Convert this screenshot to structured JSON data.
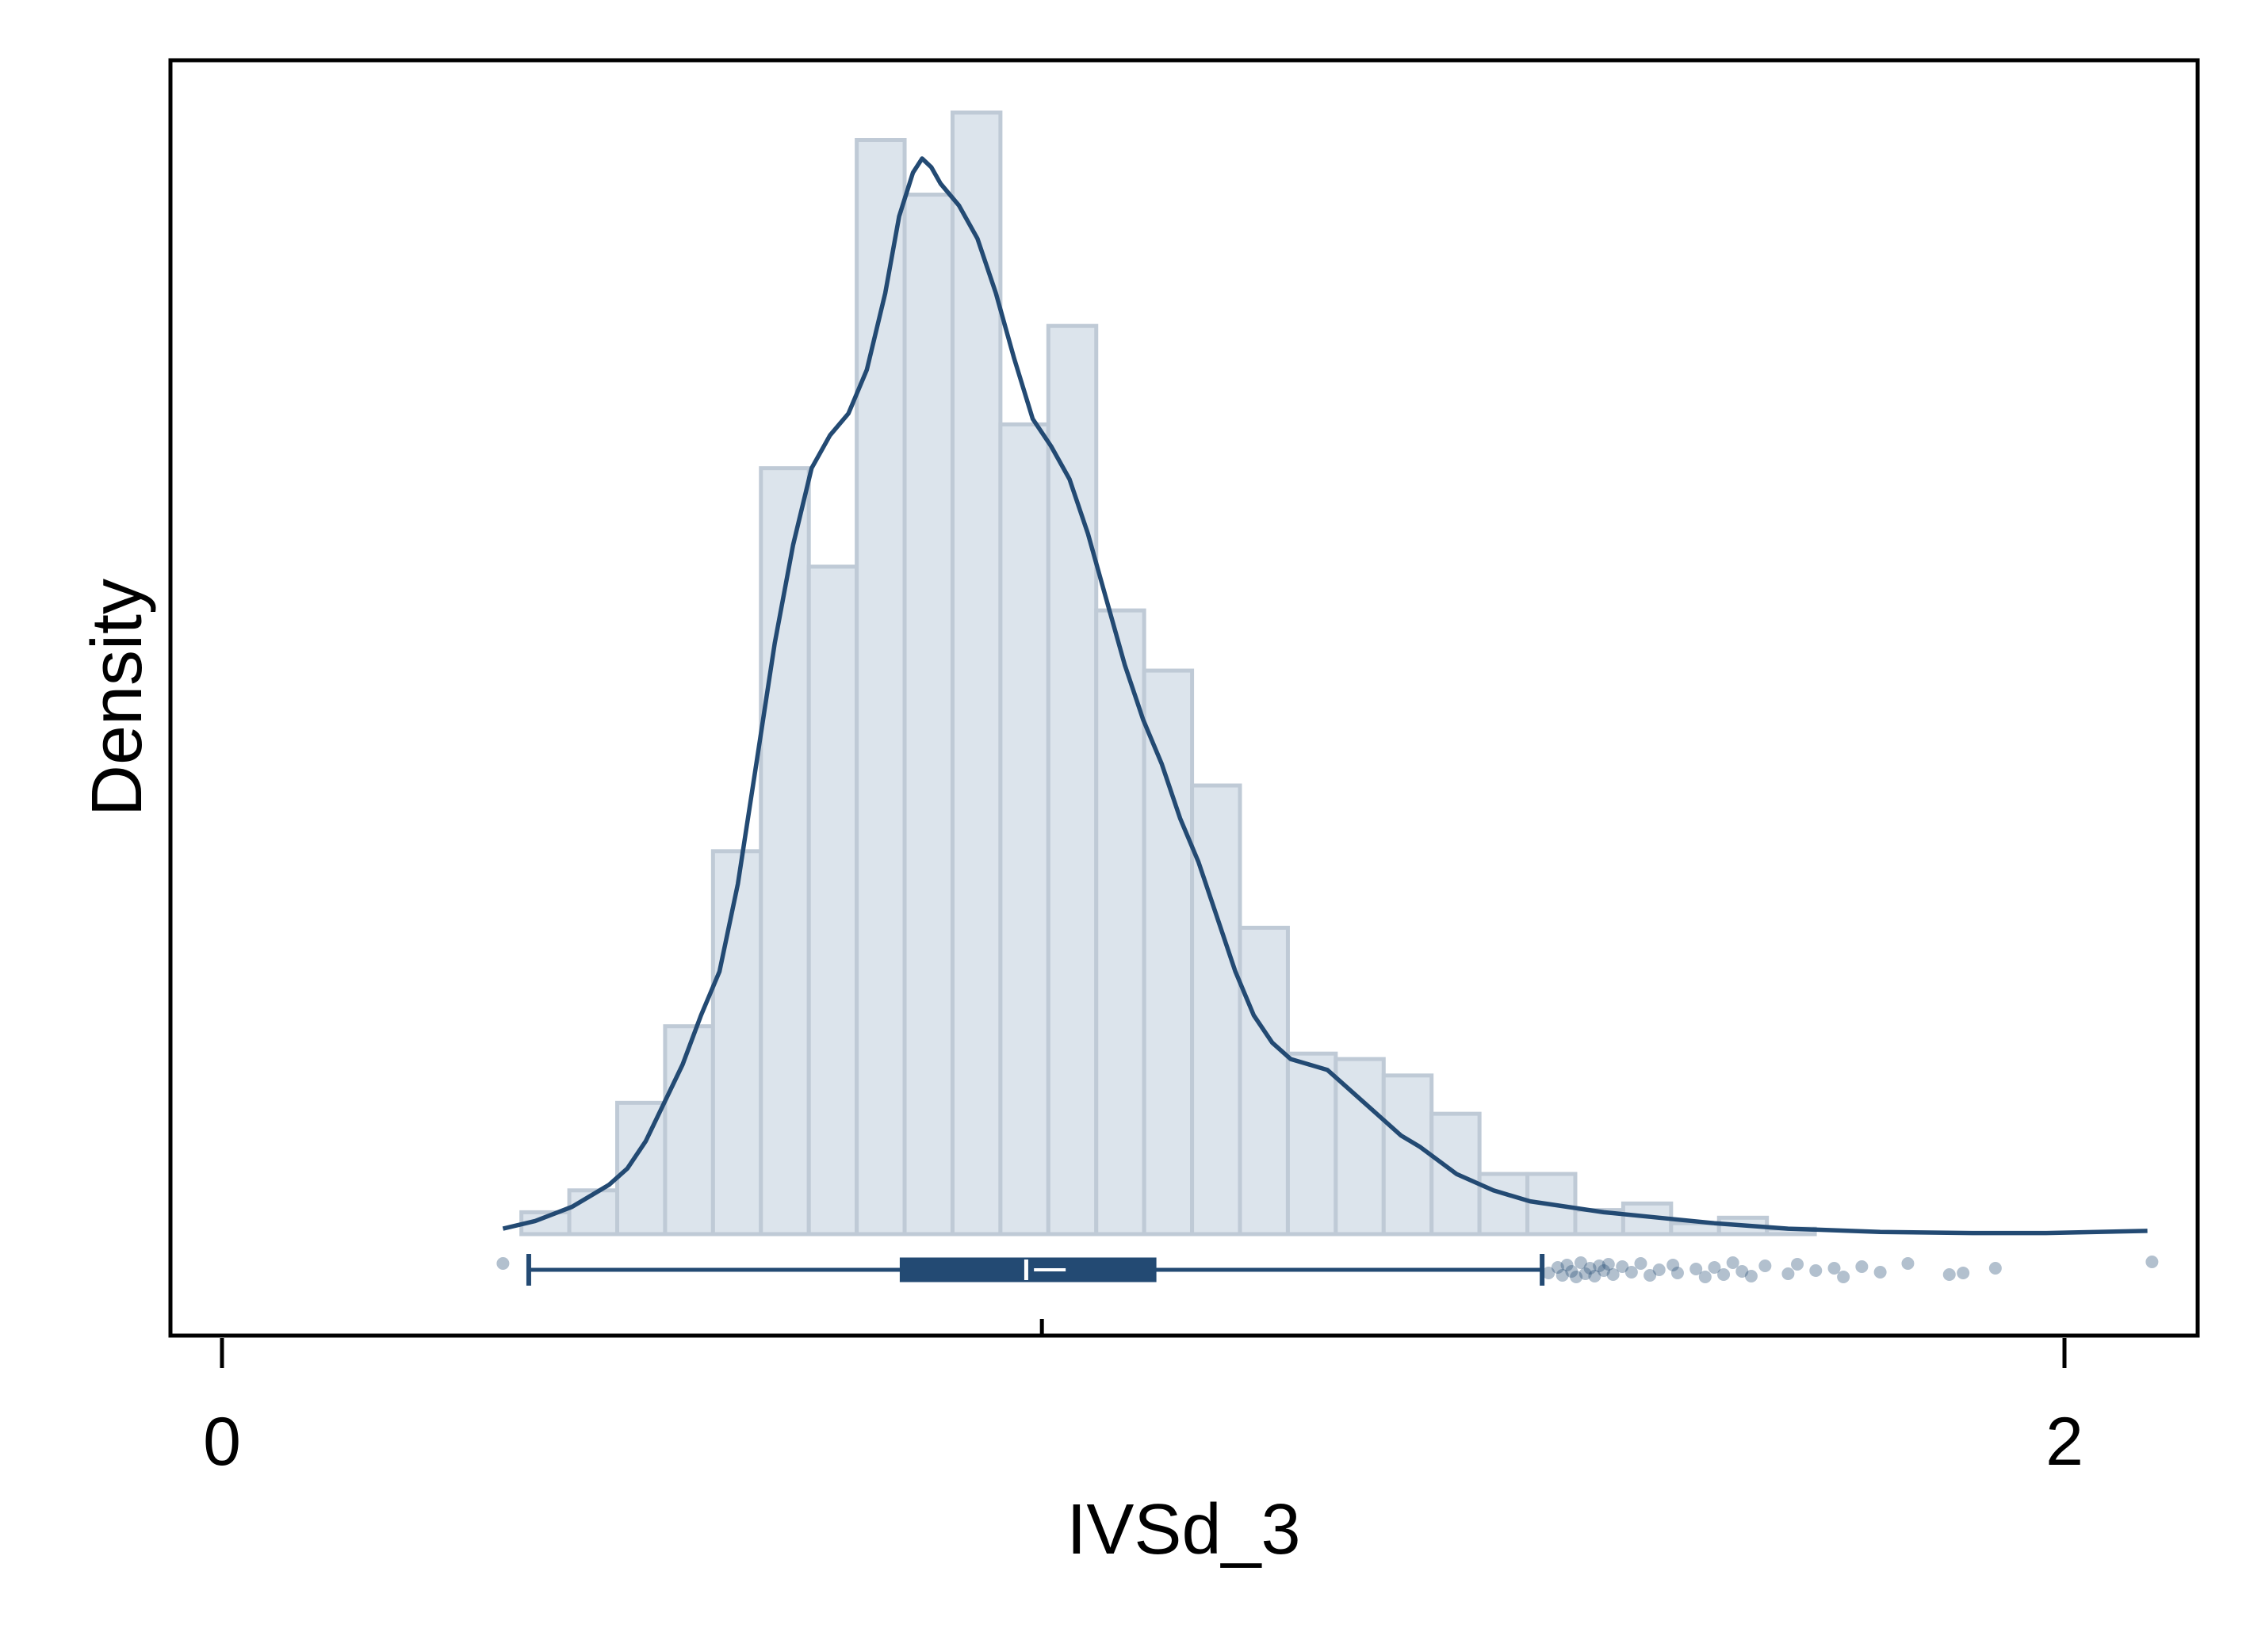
{
  "chart_data": {
    "type": "histogram",
    "xlabel": "IVSd_3",
    "ylabel": "Density",
    "x_ticks": [
      0,
      2
    ],
    "xlim": [
      -0.06,
      2.15
    ],
    "y_tick_labels_shown": false,
    "grid": false,
    "legend": "none",
    "histogram": {
      "bin_width": 0.052,
      "bins": [
        {
          "x0": 0.325,
          "x1": 0.377,
          "height": 0.02
        },
        {
          "x0": 0.377,
          "x1": 0.429,
          "height": 0.04
        },
        {
          "x0": 0.429,
          "x1": 0.481,
          "height": 0.12
        },
        {
          "x0": 0.481,
          "x1": 0.533,
          "height": 0.19
        },
        {
          "x0": 0.533,
          "x1": 0.585,
          "height": 0.35
        },
        {
          "x0": 0.585,
          "x1": 0.637,
          "height": 0.7
        },
        {
          "x0": 0.637,
          "x1": 0.689,
          "height": 0.61
        },
        {
          "x0": 0.689,
          "x1": 0.741,
          "height": 1.0
        },
        {
          "x0": 0.741,
          "x1": 0.793,
          "height": 0.95
        },
        {
          "x0": 0.793,
          "x1": 0.845,
          "height": 1.025
        },
        {
          "x0": 0.845,
          "x1": 0.897,
          "height": 0.74
        },
        {
          "x0": 0.897,
          "x1": 0.949,
          "height": 0.83
        },
        {
          "x0": 0.949,
          "x1": 1.001,
          "height": 0.57
        },
        {
          "x0": 1.001,
          "x1": 1.053,
          "height": 0.515
        },
        {
          "x0": 1.053,
          "x1": 1.105,
          "height": 0.41
        },
        {
          "x0": 1.105,
          "x1": 1.157,
          "height": 0.28
        },
        {
          "x0": 1.157,
          "x1": 1.209,
          "height": 0.165
        },
        {
          "x0": 1.209,
          "x1": 1.261,
          "height": 0.16
        },
        {
          "x0": 1.261,
          "x1": 1.313,
          "height": 0.145
        },
        {
          "x0": 1.313,
          "x1": 1.365,
          "height": 0.11
        },
        {
          "x0": 1.365,
          "x1": 1.417,
          "height": 0.055
        },
        {
          "x0": 1.417,
          "x1": 1.469,
          "height": 0.055
        },
        {
          "x0": 1.469,
          "x1": 1.521,
          "height": 0.022
        },
        {
          "x0": 1.521,
          "x1": 1.573,
          "height": 0.028
        },
        {
          "x0": 1.573,
          "x1": 1.625,
          "height": 0.01
        },
        {
          "x0": 1.625,
          "x1": 1.677,
          "height": 0.015
        },
        {
          "x0": 1.677,
          "x1": 1.729,
          "height": 0.005
        }
      ]
    },
    "density_curve": [
      [
        0.305,
        0.005
      ],
      [
        0.34,
        0.012
      ],
      [
        0.38,
        0.025
      ],
      [
        0.42,
        0.045
      ],
      [
        0.44,
        0.06
      ],
      [
        0.46,
        0.085
      ],
      [
        0.48,
        0.12
      ],
      [
        0.5,
        0.155
      ],
      [
        0.52,
        0.2
      ],
      [
        0.54,
        0.24
      ],
      [
        0.56,
        0.32
      ],
      [
        0.58,
        0.43
      ],
      [
        0.6,
        0.54
      ],
      [
        0.62,
        0.63
      ],
      [
        0.64,
        0.7
      ],
      [
        0.66,
        0.73
      ],
      [
        0.68,
        0.75
      ],
      [
        0.7,
        0.79
      ],
      [
        0.72,
        0.86
      ],
      [
        0.735,
        0.93
      ],
      [
        0.75,
        0.97
      ],
      [
        0.76,
        0.983
      ],
      [
        0.77,
        0.975
      ],
      [
        0.78,
        0.96
      ],
      [
        0.8,
        0.94
      ],
      [
        0.82,
        0.91
      ],
      [
        0.84,
        0.86
      ],
      [
        0.86,
        0.8
      ],
      [
        0.88,
        0.745
      ],
      [
        0.9,
        0.72
      ],
      [
        0.92,
        0.69
      ],
      [
        0.94,
        0.64
      ],
      [
        0.96,
        0.58
      ],
      [
        0.98,
        0.52
      ],
      [
        1.0,
        0.47
      ],
      [
        1.02,
        0.43
      ],
      [
        1.04,
        0.38
      ],
      [
        1.06,
        0.34
      ],
      [
        1.08,
        0.29
      ],
      [
        1.1,
        0.24
      ],
      [
        1.12,
        0.2
      ],
      [
        1.14,
        0.175
      ],
      [
        1.16,
        0.16
      ],
      [
        1.18,
        0.155
      ],
      [
        1.2,
        0.15
      ],
      [
        1.22,
        0.135
      ],
      [
        1.24,
        0.12
      ],
      [
        1.26,
        0.105
      ],
      [
        1.28,
        0.09
      ],
      [
        1.3,
        0.08
      ],
      [
        1.34,
        0.055
      ],
      [
        1.38,
        0.04
      ],
      [
        1.42,
        0.03
      ],
      [
        1.46,
        0.025
      ],
      [
        1.5,
        0.02
      ],
      [
        1.56,
        0.015
      ],
      [
        1.62,
        0.01
      ],
      [
        1.7,
        0.005
      ],
      [
        1.8,
        0.002
      ],
      [
        1.9,
        0.001
      ],
      [
        1.98,
        0.001
      ],
      [
        2.09,
        0.003
      ]
    ],
    "boxplot": {
      "whisker_low": 0.333,
      "q1": 0.737,
      "median": 0.873,
      "mean": 0.89,
      "q3": 1.013,
      "whisker_high": 1.433,
      "outliers": [
        0.305,
        1.44,
        1.45,
        1.455,
        1.46,
        1.465,
        1.47,
        1.475,
        1.48,
        1.485,
        1.49,
        1.495,
        1.5,
        1.505,
        1.51,
        1.52,
        1.53,
        1.54,
        1.55,
        1.56,
        1.575,
        1.58,
        1.6,
        1.61,
        1.62,
        1.63,
        1.64,
        1.65,
        1.66,
        1.675,
        1.7,
        1.71,
        1.73,
        1.75,
        1.76,
        1.78,
        1.8,
        1.83,
        1.875,
        1.89,
        1.925,
        2.095
      ]
    },
    "colors": {
      "bar_fill": "#dce4ec",
      "bar_stroke": "#bfcad6",
      "curve": "#234a73",
      "box": "#234a73",
      "outlier": "#234a73"
    }
  }
}
